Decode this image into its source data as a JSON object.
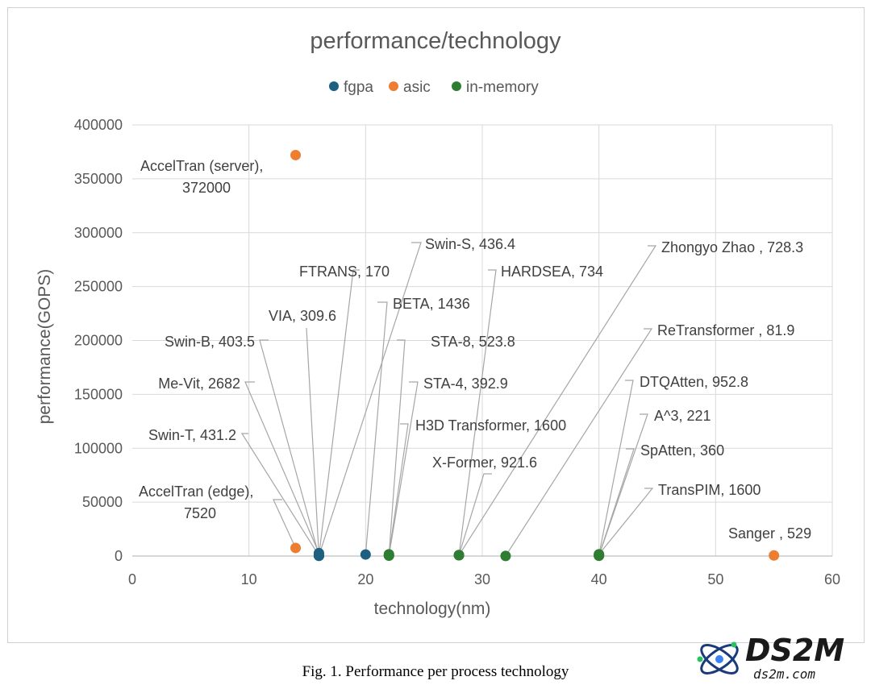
{
  "chart_data": {
    "type": "scatter",
    "title": "performance/technology",
    "xlabel": "technology(nm)",
    "ylabel": "performance(GOPS)",
    "xlim": [
      0,
      60
    ],
    "ylim": [
      0,
      400000
    ],
    "xticks": [
      0,
      10,
      20,
      30,
      40,
      50,
      60
    ],
    "yticks": [
      0,
      50000,
      100000,
      150000,
      200000,
      250000,
      300000,
      350000,
      400000
    ],
    "grid": true,
    "legend_position": "top-center",
    "series": [
      {
        "name": "fgpa",
        "color": "#1f5f7f",
        "points": [
          {
            "x": 16,
            "y": 170
          },
          {
            "x": 16,
            "y": 309.6
          },
          {
            "x": 16,
            "y": 403.5
          },
          {
            "x": 16,
            "y": 2682
          },
          {
            "x": 16,
            "y": 431.2
          },
          {
            "x": 16,
            "y": 436.4
          },
          {
            "x": 20,
            "y": 1436
          }
        ]
      },
      {
        "name": "asic",
        "color": "#ed7d31",
        "points": [
          {
            "x": 14,
            "y": 372000
          },
          {
            "x": 14,
            "y": 7520
          },
          {
            "x": 40,
            "y": 360
          },
          {
            "x": 55,
            "y": 529
          }
        ]
      },
      {
        "name": "in-memory",
        "color": "#2e7d32",
        "points": [
          {
            "x": 22,
            "y": 523.8
          },
          {
            "x": 22,
            "y": 392.9
          },
          {
            "x": 22,
            "y": 1600
          },
          {
            "x": 28,
            "y": 734
          },
          {
            "x": 28,
            "y": 921.6
          },
          {
            "x": 32,
            "y": 81.9
          },
          {
            "x": 40,
            "y": 952.8
          },
          {
            "x": 40,
            "y": 221
          },
          {
            "x": 40,
            "y": 1600
          },
          {
            "x": 28,
            "y": 728.3
          }
        ]
      }
    ],
    "data_labels": [
      {
        "name": "AccelTran (server)",
        "value": "372000",
        "x": 14,
        "y": 372000
      },
      {
        "name": "AccelTran (edge)",
        "value": "7520",
        "x": 14,
        "y": 7520
      },
      {
        "name": "Swin-S",
        "value": "436.4",
        "x": 16,
        "y": 436.4
      },
      {
        "name": "FTRANS",
        "value": "170",
        "x": 16,
        "y": 170
      },
      {
        "name": "VIA",
        "value": "309.6",
        "x": 16,
        "y": 309.6
      },
      {
        "name": "Swin-B",
        "value": "403.5",
        "x": 16,
        "y": 403.5
      },
      {
        "name": "Me-Vit",
        "value": "2682",
        "x": 16,
        "y": 2682
      },
      {
        "name": "Swin-T",
        "value": "431.2",
        "x": 16,
        "y": 431.2
      },
      {
        "name": "BETA",
        "value": "1436",
        "x": 20,
        "y": 1436
      },
      {
        "name": "HARDSEA",
        "value": "734",
        "x": 28,
        "y": 734
      },
      {
        "name": "STA-8",
        "value": "523.8",
        "x": 22,
        "y": 523.8
      },
      {
        "name": "STA-4",
        "value": "392.9",
        "x": 22,
        "y": 392.9
      },
      {
        "name": "H3D Transformer",
        "value": "1600",
        "x": 22,
        "y": 1600
      },
      {
        "name": "X-Former",
        "value": "921.6",
        "x": 28,
        "y": 921.6
      },
      {
        "name": "Zhongyo Zhao ",
        "value": "728.3",
        "x": 28,
        "y": 728.3
      },
      {
        "name": "ReTransformer ",
        "value": "81.9",
        "x": 32,
        "y": 81.9
      },
      {
        "name": "DTQAtten",
        "value": "952.8",
        "x": 40,
        "y": 952.8
      },
      {
        "name": "A^3",
        "value": "221",
        "x": 40,
        "y": 221
      },
      {
        "name": "SpAtten",
        "value": "360",
        "x": 40,
        "y": 360
      },
      {
        "name": "TransPIM",
        "value": "1600",
        "x": 40,
        "y": 1600
      },
      {
        "name": "Sanger ",
        "value": "529",
        "x": 55,
        "y": 529
      }
    ]
  },
  "caption": "Fig. 1.  Performance per process technology",
  "watermark": {
    "brand": "DS2M",
    "site": "ds2m.com"
  }
}
